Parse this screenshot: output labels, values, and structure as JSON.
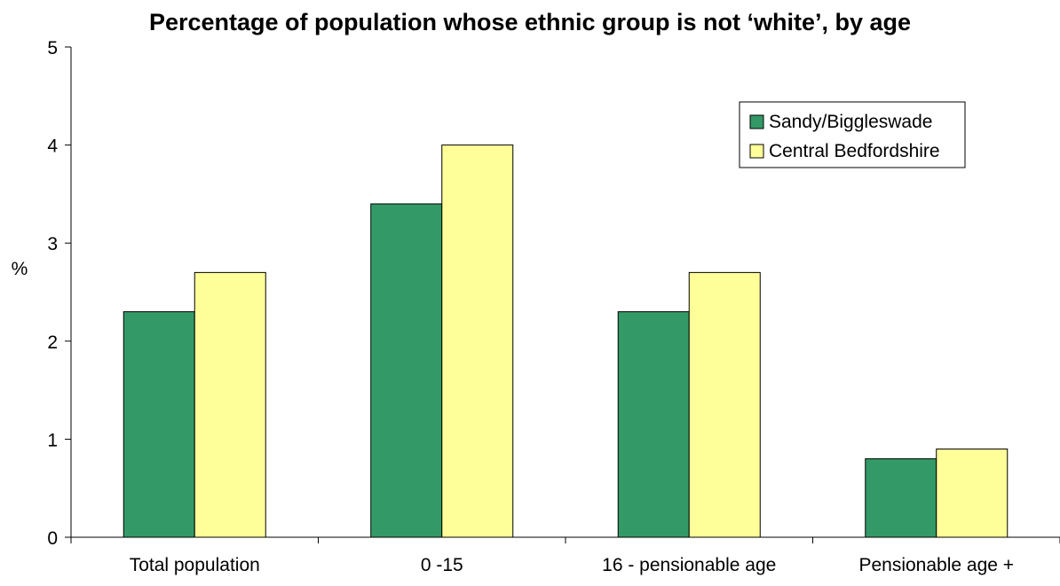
{
  "chart_data": {
    "type": "bar",
    "title": "Percentage of population whose ethnic group is not ‘white’, by age",
    "xlabel": "",
    "ylabel": "%",
    "ylim": [
      0,
      5
    ],
    "yticks": [
      "0",
      "1",
      "2",
      "3",
      "4",
      "5"
    ],
    "grid": false,
    "legend_position": "top-right",
    "categories": [
      "Total population",
      "0 -15",
      "16 - pensionable age",
      "Pensionable age +"
    ],
    "series": [
      {
        "name": "Sandy/Biggleswade",
        "color": "#339966",
        "values": [
          2.3,
          3.4,
          2.3,
          0.8
        ]
      },
      {
        "name": "Central Bedfordshire",
        "color": "#FFFF99",
        "values": [
          2.7,
          4.0,
          2.7,
          0.9
        ]
      }
    ]
  }
}
